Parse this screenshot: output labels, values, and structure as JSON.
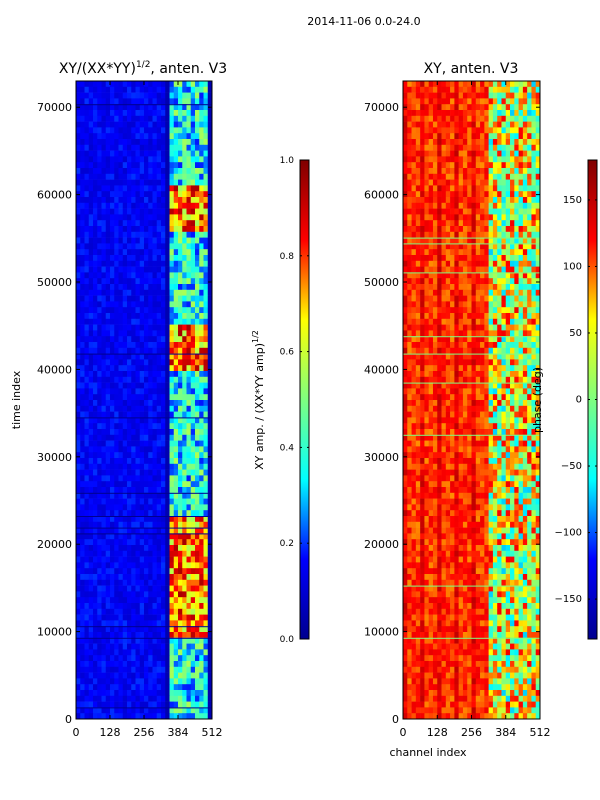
{
  "suptitle": "2014-11-06 0.0-24.0",
  "colors": {
    "jet": [
      "#00008f",
      "#0000ff",
      "#00ffff",
      "#7fff7f",
      "#ffff00",
      "#ff0000",
      "#7f0000"
    ]
  },
  "chart_data": [
    {
      "type": "heatmap",
      "title": "XY/(XX*YY)",
      "title_exponent": "1/2",
      "title_suffix": ", anten. V3",
      "xlabel": "",
      "ylabel": "time index",
      "xlim": [
        0,
        512
      ],
      "ylim": [
        0,
        73000
      ],
      "xticks": [
        "0",
        "128",
        "256",
        "384",
        "512"
      ],
      "xtick_values": [
        0,
        128,
        256,
        384,
        512
      ],
      "yticks": [
        "0",
        "10000",
        "20000",
        "30000",
        "40000",
        "50000",
        "60000",
        "70000"
      ],
      "ytick_values": [
        0,
        10000,
        20000,
        30000,
        40000,
        50000,
        60000,
        70000
      ],
      "colormap": "jet",
      "colorbar": {
        "label": "XY amp. / (XX*YY amp)",
        "label_exponent": "1/2",
        "range": [
          0.0,
          1.0
        ],
        "ticks": [
          "0.0",
          "0.2",
          "0.4",
          "0.6",
          "0.8",
          "1.0"
        ],
        "tick_values": [
          0.0,
          0.2,
          0.4,
          0.6,
          0.8,
          1.0
        ]
      }
    },
    {
      "type": "heatmap",
      "title": "XY, anten. V3",
      "xlabel": "channel index",
      "ylabel": "",
      "xlim": [
        0,
        512
      ],
      "ylim": [
        0,
        73000
      ],
      "xticks": [
        "0",
        "128",
        "256",
        "384",
        "512"
      ],
      "xtick_values": [
        0,
        128,
        256,
        384,
        512
      ],
      "yticks": [
        "0",
        "10000",
        "20000",
        "30000",
        "40000",
        "50000",
        "60000",
        "70000"
      ],
      "ytick_values": [
        0,
        10000,
        20000,
        30000,
        40000,
        50000,
        60000,
        70000
      ],
      "colormap": "jet",
      "colorbar": {
        "label": "phase (deg)",
        "range": [
          -180,
          180
        ],
        "ticks": [
          "−150",
          "−100",
          "−50",
          "0",
          "50",
          "100",
          "150"
        ],
        "tick_values": [
          -150,
          -100,
          -50,
          0,
          50,
          100,
          150
        ]
      }
    }
  ]
}
